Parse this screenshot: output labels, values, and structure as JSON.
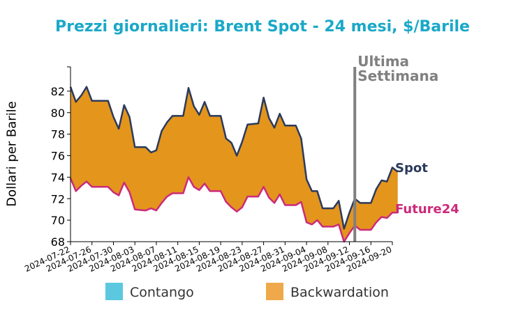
{
  "chart_data": {
    "type": "area",
    "title": "Prezzi giornalieri: Brent Spot - 24 mesi, $/Barile",
    "ylabel": "Dollari per Barile",
    "xlabel": "",
    "ylim": [
      68,
      84
    ],
    "yticks": [
      68,
      70,
      72,
      74,
      76,
      78,
      80,
      82
    ],
    "x_start": "2024-07-22",
    "x_end": "2024-09-20",
    "xticks": [
      "2024-07-22",
      "2024-07-26",
      "2024-07-30",
      "2024-08-03",
      "2024-08-07",
      "2024-08-11",
      "2024-08-15",
      "2024-08-19",
      "2024-08-23",
      "2024-08-27",
      "2024-08-31",
      "2024-09-04",
      "2024-09-08",
      "2024-09-12",
      "2024-09-16",
      "2024-09-20"
    ],
    "marker": {
      "date": "2024-09-13",
      "label_line1": "Ultima",
      "label_line2": "Settimana"
    },
    "series": [
      {
        "name": "Spot",
        "color": "#2b3a5c",
        "points": [
          [
            "2024-07-22",
            82.4
          ],
          [
            "2024-07-23",
            81.0
          ],
          [
            "2024-07-24",
            81.6
          ],
          [
            "2024-07-25",
            82.4
          ],
          [
            "2024-07-26",
            81.1
          ],
          [
            "2024-07-29",
            81.1
          ],
          [
            "2024-07-30",
            79.6
          ],
          [
            "2024-07-31",
            78.5
          ],
          [
            "2024-08-01",
            80.7
          ],
          [
            "2024-08-02",
            79.6
          ],
          [
            "2024-08-03",
            76.8
          ],
          [
            "2024-08-05",
            76.8
          ],
          [
            "2024-08-06",
            76.3
          ],
          [
            "2024-08-07",
            76.5
          ],
          [
            "2024-08-08",
            78.3
          ],
          [
            "2024-08-09",
            79.1
          ],
          [
            "2024-08-10",
            79.7
          ],
          [
            "2024-08-12",
            79.7
          ],
          [
            "2024-08-13",
            82.3
          ],
          [
            "2024-08-14",
            80.6
          ],
          [
            "2024-08-15",
            79.8
          ],
          [
            "2024-08-16",
            81.0
          ],
          [
            "2024-08-17",
            79.7
          ],
          [
            "2024-08-19",
            79.7
          ],
          [
            "2024-08-20",
            77.6
          ],
          [
            "2024-08-21",
            77.2
          ],
          [
            "2024-08-22",
            76.0
          ],
          [
            "2024-08-23",
            77.3
          ],
          [
            "2024-08-24",
            78.9
          ],
          [
            "2024-08-26",
            79.0
          ],
          [
            "2024-08-27",
            81.4
          ],
          [
            "2024-08-28",
            79.5
          ],
          [
            "2024-08-29",
            78.6
          ],
          [
            "2024-08-30",
            79.9
          ],
          [
            "2024-08-31",
            78.8
          ],
          [
            "2024-09-02",
            78.8
          ],
          [
            "2024-09-03",
            77.6
          ],
          [
            "2024-09-04",
            73.8
          ],
          [
            "2024-09-05",
            72.7
          ],
          [
            "2024-09-06",
            72.7
          ],
          [
            "2024-09-07",
            71.1
          ],
          [
            "2024-09-09",
            71.1
          ],
          [
            "2024-09-10",
            71.8
          ],
          [
            "2024-09-11",
            69.2
          ],
          [
            "2024-09-12",
            70.7
          ],
          [
            "2024-09-13",
            72.0
          ],
          [
            "2024-09-14",
            71.6
          ],
          [
            "2024-09-16",
            71.6
          ],
          [
            "2024-09-17",
            72.9
          ],
          [
            "2024-09-18",
            73.7
          ],
          [
            "2024-09-19",
            73.6
          ],
          [
            "2024-09-20",
            74.9
          ],
          [
            "2024-09-21",
            74.5
          ]
        ]
      },
      {
        "name": "Future24",
        "color": "#cc2a7a",
        "points": [
          [
            "2024-07-22",
            73.9
          ],
          [
            "2024-07-23",
            72.7
          ],
          [
            "2024-07-24",
            73.2
          ],
          [
            "2024-07-25",
            73.6
          ],
          [
            "2024-07-26",
            73.1
          ],
          [
            "2024-07-29",
            73.1
          ],
          [
            "2024-07-30",
            72.6
          ],
          [
            "2024-07-31",
            72.3
          ],
          [
            "2024-08-01",
            73.5
          ],
          [
            "2024-08-02",
            72.6
          ],
          [
            "2024-08-03",
            71.0
          ],
          [
            "2024-08-05",
            70.9
          ],
          [
            "2024-08-06",
            71.1
          ],
          [
            "2024-08-07",
            70.9
          ],
          [
            "2024-08-08",
            71.6
          ],
          [
            "2024-08-09",
            72.2
          ],
          [
            "2024-08-10",
            72.5
          ],
          [
            "2024-08-12",
            72.5
          ],
          [
            "2024-08-13",
            74.0
          ],
          [
            "2024-08-14",
            73.1
          ],
          [
            "2024-08-15",
            72.8
          ],
          [
            "2024-08-16",
            73.4
          ],
          [
            "2024-08-17",
            72.7
          ],
          [
            "2024-08-19",
            72.7
          ],
          [
            "2024-08-20",
            71.7
          ],
          [
            "2024-08-21",
            71.2
          ],
          [
            "2024-08-22",
            70.8
          ],
          [
            "2024-08-23",
            71.2
          ],
          [
            "2024-08-24",
            72.2
          ],
          [
            "2024-08-26",
            72.2
          ],
          [
            "2024-08-27",
            73.1
          ],
          [
            "2024-08-28",
            72.1
          ],
          [
            "2024-08-29",
            71.6
          ],
          [
            "2024-08-30",
            72.4
          ],
          [
            "2024-08-31",
            71.4
          ],
          [
            "2024-09-02",
            71.4
          ],
          [
            "2024-09-03",
            71.7
          ],
          [
            "2024-09-04",
            69.8
          ],
          [
            "2024-09-05",
            69.6
          ],
          [
            "2024-09-06",
            70.0
          ],
          [
            "2024-09-07",
            69.4
          ],
          [
            "2024-09-09",
            69.4
          ],
          [
            "2024-09-10",
            69.6
          ],
          [
            "2024-09-11",
            68.0
          ],
          [
            "2024-09-12",
            68.8
          ],
          [
            "2024-09-13",
            69.5
          ],
          [
            "2024-09-14",
            69.1
          ],
          [
            "2024-09-16",
            69.1
          ],
          [
            "2024-09-17",
            69.8
          ],
          [
            "2024-09-18",
            70.3
          ],
          [
            "2024-09-19",
            70.2
          ],
          [
            "2024-09-20",
            70.7
          ],
          [
            "2024-09-21",
            70.7
          ]
        ]
      }
    ],
    "fills": {
      "backwardation_color": "#e3951c",
      "contango_color": "#5bc8e0"
    },
    "legend": {
      "position": "bottom",
      "items": [
        {
          "label": "Contango",
          "color": "#5bc8e0"
        },
        {
          "label": "Backwardation",
          "color": "#efa94a"
        }
      ]
    },
    "grid": false,
    "title_color": "#1aa8c8"
  }
}
